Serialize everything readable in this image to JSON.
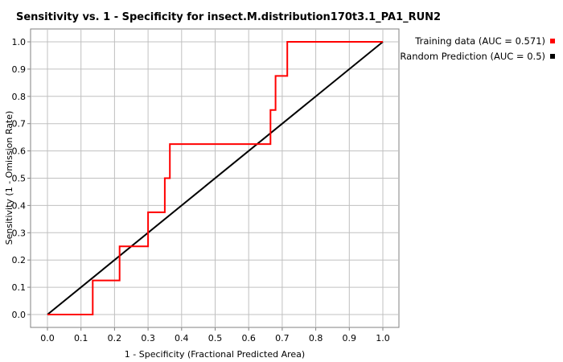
{
  "chart_data": {
    "type": "line",
    "title": "Sensitivity vs. 1 - Specificity for insect.M.distribution170t3.1_PA1_RUN2",
    "xlabel": "1 - Specificity  (Fractional Predicted Area)",
    "ylabel": "Sensitivity  (1 - Omission Rate)",
    "xlim": [
      0.0,
      1.0
    ],
    "ylim": [
      0.0,
      1.0
    ],
    "xticks": [
      "0.0",
      "0.1",
      "0.2",
      "0.3",
      "0.4",
      "0.5",
      "0.6",
      "0.7",
      "0.8",
      "0.9",
      "1.0"
    ],
    "yticks": [
      "0.0",
      "0.1",
      "0.2",
      "0.3",
      "0.4",
      "0.5",
      "0.6",
      "0.7",
      "0.8",
      "0.9",
      "1.0"
    ],
    "grid": true,
    "legend_position": "top-right",
    "series": [
      {
        "name": "Training data (AUC = 0.571)",
        "color": "#ff0000",
        "x": [
          0.0,
          0.135,
          0.135,
          0.215,
          0.215,
          0.3,
          0.3,
          0.35,
          0.35,
          0.365,
          0.365,
          0.665,
          0.665,
          0.68,
          0.68,
          0.715,
          0.715,
          1.0
        ],
        "y": [
          0.0,
          0.0,
          0.125,
          0.125,
          0.25,
          0.25,
          0.375,
          0.375,
          0.5,
          0.5,
          0.625,
          0.625,
          0.75,
          0.75,
          0.875,
          0.875,
          1.0,
          1.0
        ]
      },
      {
        "name": "Random Prediction (AUC = 0.5)",
        "color": "#000000",
        "x": [
          0.0,
          1.0
        ],
        "y": [
          0.0,
          1.0
        ]
      }
    ]
  }
}
